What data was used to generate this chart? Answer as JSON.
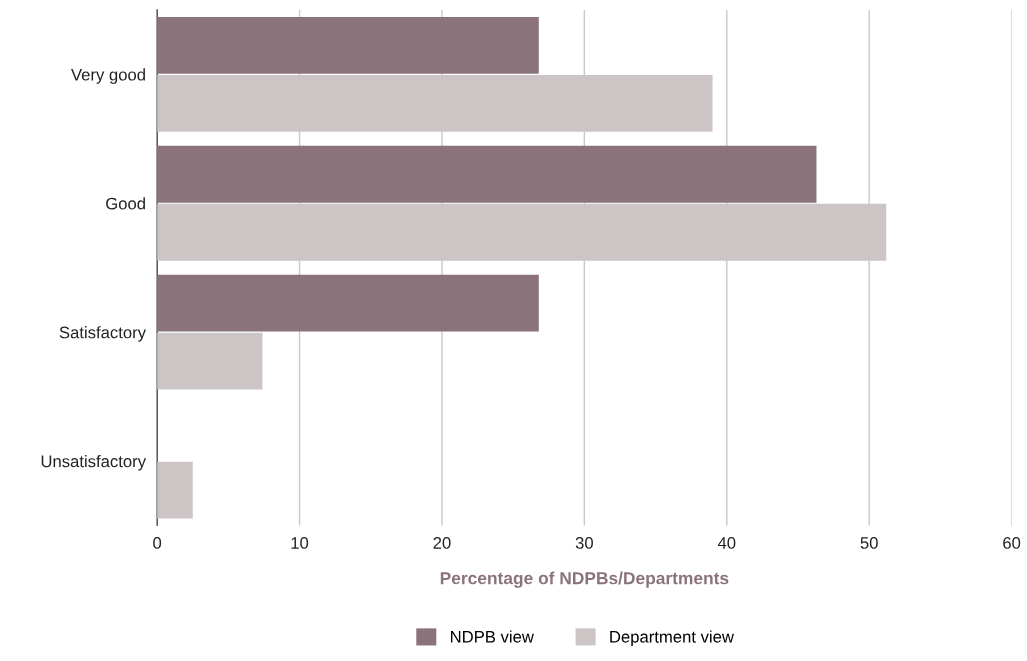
{
  "chart_data": {
    "type": "bar",
    "orientation": "horizontal",
    "xlabel": "Percentage of NDPBs/Departments",
    "categories": [
      "Very good",
      "Good",
      "Satisfactory",
      "Unsatisfactory"
    ],
    "series": [
      {
        "name": "NDPB view",
        "color": "#8a737a",
        "values": [
          26.8,
          46.3,
          26.8,
          0
        ]
      },
      {
        "name": "Department view",
        "color": "#cdc4c6",
        "values": [
          39.0,
          51.2,
          7.4,
          2.5
        ]
      }
    ],
    "xlim": [
      0,
      60
    ],
    "xticks": [
      0,
      10,
      20,
      30,
      40,
      50,
      60
    ],
    "grid": "x",
    "legend": "bottom"
  }
}
